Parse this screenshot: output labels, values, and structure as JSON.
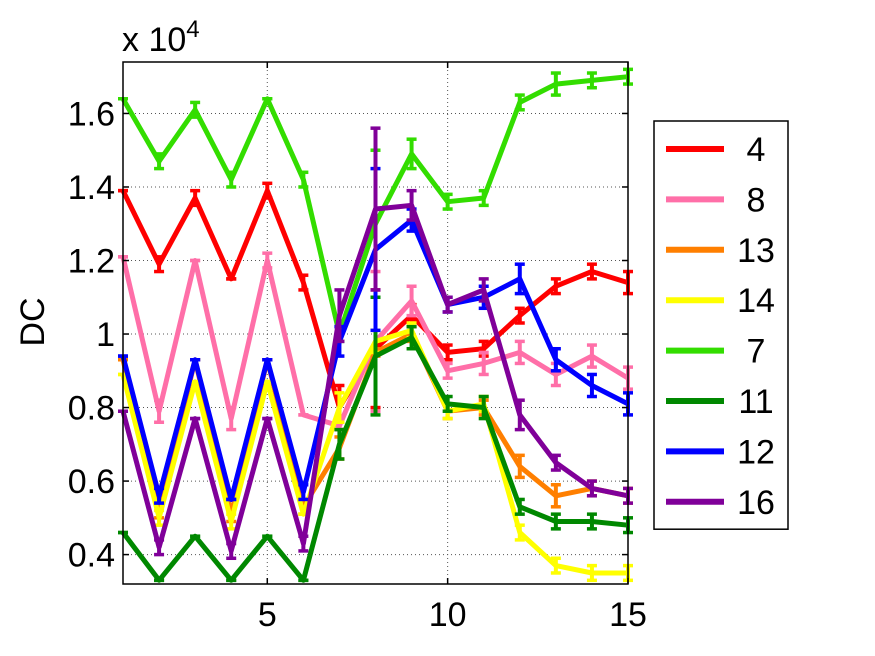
{
  "chart_data": {
    "type": "line",
    "title": "",
    "xlabel": "",
    "ylabel": "DC",
    "y_exponent_prefix": "x 10",
    "y_exponent": "4",
    "xlim": [
      1,
      15
    ],
    "ylim": [
      3200,
      17400
    ],
    "xticks": [
      5,
      10,
      15
    ],
    "yticks": [
      4000,
      6000,
      8000,
      10000,
      12000,
      14000,
      16000
    ],
    "ytick_labels": [
      "0.4",
      "0.6",
      "0.8",
      "1",
      "1.2",
      "1.4",
      "1.6"
    ],
    "grid": true,
    "legend_position": "right",
    "x": [
      1,
      2,
      3,
      4,
      5,
      6,
      7,
      8,
      9,
      10,
      11,
      12,
      13,
      14,
      15
    ],
    "series": [
      {
        "name": "4",
        "color": "#ff0000",
        "values": [
          13900,
          11900,
          13700,
          11500,
          13900,
          11400,
          8000,
          9600,
          10500,
          9500,
          9600,
          10500,
          11300,
          11700,
          11400
        ],
        "errors": [
          0,
          200,
          200,
          0,
          200,
          200,
          600,
          1600,
          300,
          200,
          200,
          200,
          200,
          200,
          300
        ]
      },
      {
        "name": "8",
        "color": "#ff6fa8",
        "values": [
          12100,
          7900,
          12000,
          7700,
          12000,
          7800,
          7500,
          9800,
          10900,
          9000,
          9200,
          9500,
          8900,
          9400,
          8800
        ],
        "errors": [
          0,
          300,
          0,
          300,
          200,
          0,
          100,
          1900,
          400,
          200,
          300,
          300,
          300,
          300,
          300
        ]
      },
      {
        "name": "13",
        "color": "#ff7f00",
        "values": [
          9300,
          5200,
          9300,
          5100,
          9300,
          5300,
          6900,
          9500,
          10000,
          7900,
          8000,
          6400,
          5600,
          5800,
          5600
        ],
        "errors": [
          0,
          200,
          0,
          200,
          0,
          200,
          300,
          100,
          200,
          200,
          200,
          300,
          300,
          200,
          200
        ]
      },
      {
        "name": "14",
        "color": "#ffff00",
        "values": [
          8900,
          5000,
          8700,
          4900,
          8700,
          5100,
          8000,
          9800,
          10100,
          7900,
          8100,
          4600,
          3700,
          3500,
          3500
        ],
        "errors": [
          0,
          200,
          0,
          200,
          0,
          0,
          400,
          300,
          200,
          200,
          200,
          200,
          200,
          200,
          200
        ]
      },
      {
        "name": "7",
        "color": "#33dd00",
        "values": [
          16400,
          14700,
          16100,
          14200,
          16400,
          14200,
          10000,
          13000,
          14900,
          13600,
          13700,
          16300,
          16800,
          16900,
          17000
        ],
        "errors": [
          0,
          200,
          200,
          200,
          0,
          200,
          200,
          2000,
          400,
          200,
          200,
          200,
          300,
          200,
          200
        ]
      },
      {
        "name": "11",
        "color": "#008800",
        "values": [
          4600,
          3300,
          4500,
          3300,
          4500,
          3300,
          7000,
          9400,
          9900,
          8100,
          8000,
          5300,
          4900,
          4900,
          4800
        ],
        "errors": [
          0,
          0,
          0,
          0,
          0,
          0,
          400,
          1600,
          300,
          200,
          300,
          200,
          200,
          200,
          200
        ]
      },
      {
        "name": "12",
        "color": "#0000ff",
        "values": [
          9400,
          5600,
          9300,
          5500,
          9300,
          5700,
          9800,
          12300,
          13100,
          10800,
          11000,
          11500,
          9300,
          8600,
          8100
        ],
        "errors": [
          0,
          200,
          0,
          0,
          0,
          200,
          400,
          2200,
          300,
          200,
          300,
          400,
          300,
          300,
          300
        ]
      },
      {
        "name": "16",
        "color": "#800099",
        "values": [
          7900,
          4200,
          7700,
          4100,
          7700,
          4300,
          10500,
          13400,
          13500,
          10800,
          11200,
          7800,
          6500,
          5800,
          5600
        ],
        "errors": [
          0,
          200,
          0,
          200,
          0,
          200,
          700,
          2200,
          400,
          200,
          300,
          400,
          200,
          200,
          200
        ]
      }
    ]
  }
}
